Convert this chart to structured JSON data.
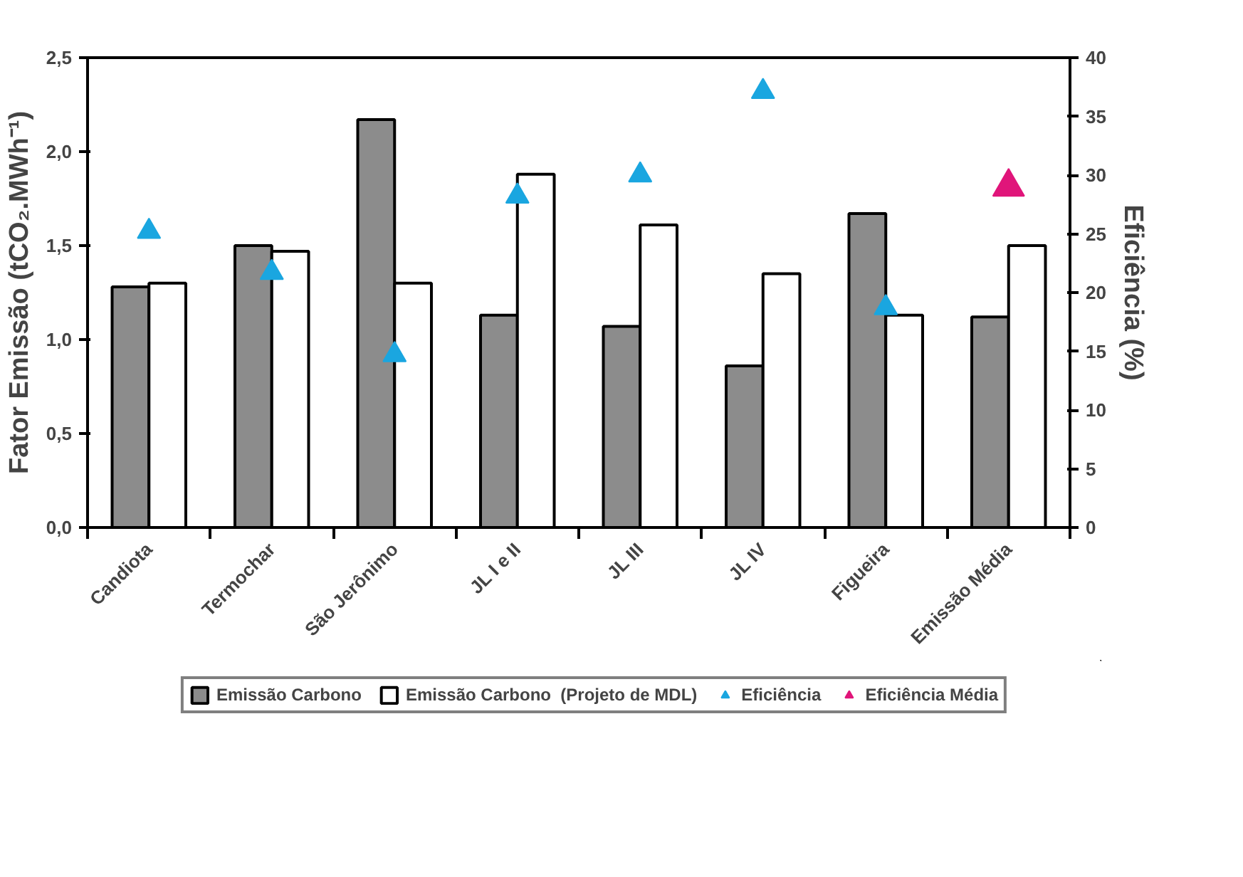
{
  "chart_data": {
    "type": "bar",
    "ylabel": "Fator Emissão (tCO₂.MWh⁻¹)",
    "y2label": "Eficiência (%)",
    "categories": [
      "Candiota",
      "Termochar",
      "São Jerônimo",
      "JL I e II",
      "JL III",
      "JL IV",
      "Figueira",
      "Emissão Média"
    ],
    "series": [
      {
        "name": "Emissão Carbono",
        "color": "#8c8c8c",
        "values": [
          1.28,
          1.5,
          2.17,
          1.13,
          1.07,
          0.86,
          1.67,
          1.12
        ]
      },
      {
        "name": "Emissão Carbono  (Projeto de MDL)",
        "color": "#ffffff",
        "values": [
          1.3,
          1.47,
          1.3,
          1.88,
          1.61,
          1.35,
          1.13,
          1.5
        ]
      },
      {
        "name": "Eficiência",
        "type": "scatter",
        "axis": "y2",
        "color": "#1aa6e0",
        "values": [
          25.2,
          21.7,
          14.7,
          28.2,
          30.0,
          37.1,
          18.7,
          null
        ]
      },
      {
        "name": "Eficiência Média",
        "type": "scatter",
        "axis": "y2",
        "color": "#e0157a",
        "values": [
          null,
          null,
          null,
          null,
          null,
          null,
          null,
          29.0
        ]
      }
    ],
    "ylim": [
      0,
      2.5
    ],
    "yticks": [
      {
        "value": 0,
        "label": "0,0"
      },
      {
        "value": 0.5,
        "label": "0,5"
      },
      {
        "value": 1,
        "label": "1,0"
      },
      {
        "value": 1.5,
        "label": "1,5"
      },
      {
        "value": 2,
        "label": "2,0"
      },
      {
        "value": 2.5,
        "label": "2,5"
      }
    ],
    "y2lim": [
      0,
      40
    ],
    "y2ticks": [
      0,
      5,
      10,
      15,
      20,
      25,
      30,
      35,
      40
    ],
    "marker": "triangle",
    "legend": "bottom",
    "grid": false
  }
}
